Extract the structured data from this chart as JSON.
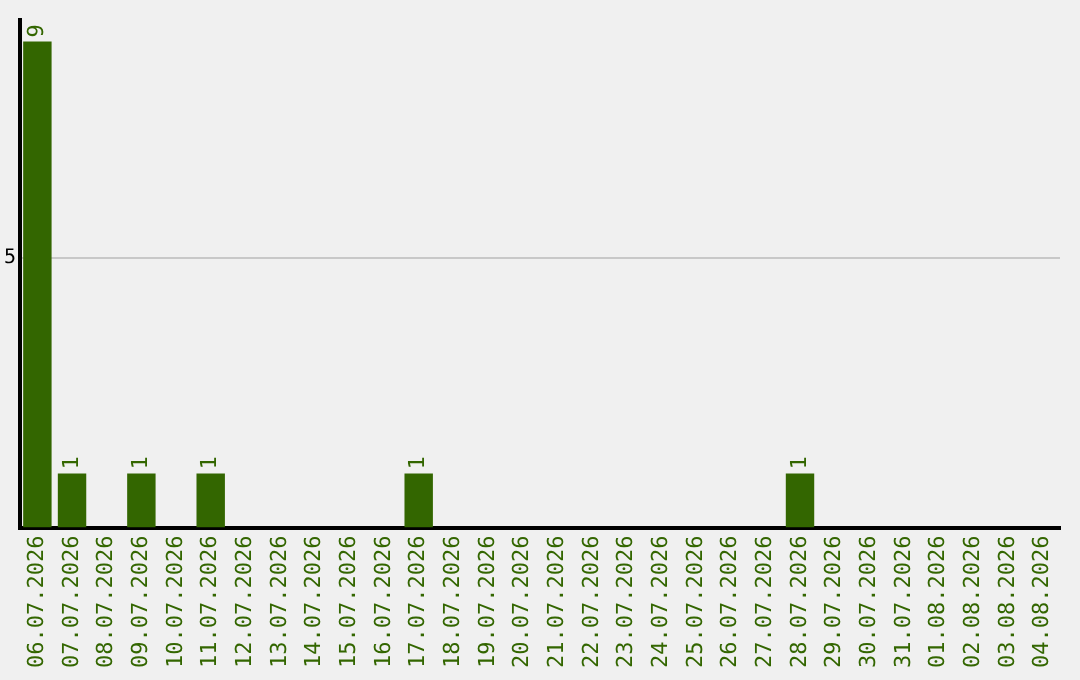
{
  "chart_data": {
    "type": "bar",
    "categories": [
      "06.07.2026",
      "07.07.2026",
      "08.07.2026",
      "09.07.2026",
      "10.07.2026",
      "11.07.2026",
      "12.07.2026",
      "13.07.2026",
      "14.07.2026",
      "15.07.2026",
      "16.07.2026",
      "17.07.2026",
      "18.07.2026",
      "19.07.2026",
      "20.07.2026",
      "21.07.2026",
      "22.07.2026",
      "23.07.2026",
      "24.07.2026",
      "25.07.2026",
      "26.07.2026",
      "27.07.2026",
      "28.07.2026",
      "29.07.2026",
      "30.07.2026",
      "31.07.2026",
      "01.08.2026",
      "02.08.2026",
      "03.08.2026",
      "04.08.2026"
    ],
    "values": [
      9,
      1,
      0,
      1,
      0,
      1,
      0,
      0,
      0,
      0,
      0,
      1,
      0,
      0,
      0,
      0,
      0,
      0,
      0,
      0,
      0,
      0,
      1,
      0,
      0,
      0,
      0,
      0,
      0,
      0
    ],
    "value_labels": [
      "9",
      "1",
      null,
      "1",
      null,
      "1",
      null,
      null,
      null,
      null,
      null,
      "1",
      null,
      null,
      null,
      null,
      null,
      null,
      null,
      null,
      null,
      null,
      "1",
      null,
      null,
      null,
      null,
      null,
      null,
      null
    ],
    "color": "#336600",
    "ylim": [
      0,
      9.4
    ],
    "yticks": [
      5
    ],
    "grid": "y",
    "legend": false
  }
}
